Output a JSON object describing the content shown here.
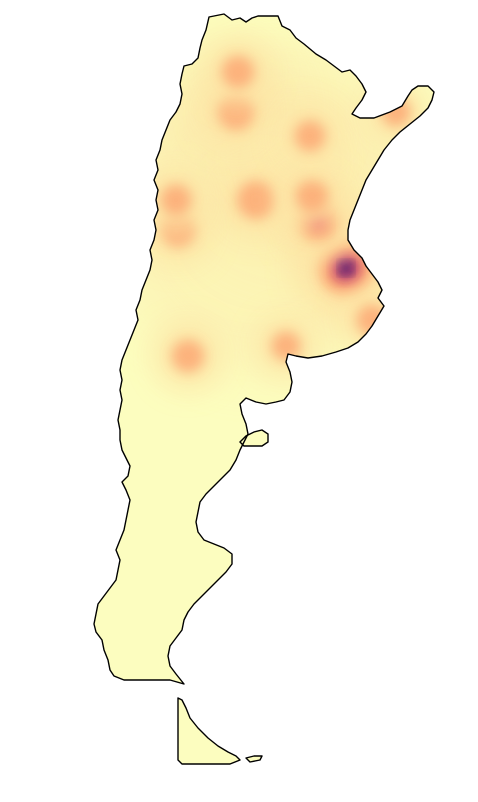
{
  "map": {
    "region": "Argentina",
    "style": "choropleth heatmap, no labels, no legend",
    "colors": {
      "background": "#ffffff",
      "outline": "#000000",
      "low": "#fcfdbf",
      "mid_low": "#fde4a5",
      "mid": "#fca572",
      "mid_high": "#e85362",
      "high": "#7b2382",
      "peak": "#1e1050"
    },
    "hotspots": [
      {
        "name": "buenos-aires",
        "intensity": 1.0
      },
      {
        "name": "rosario",
        "intensity": 0.55
      },
      {
        "name": "cordoba",
        "intensity": 0.5
      },
      {
        "name": "tucuman",
        "intensity": 0.45
      },
      {
        "name": "salta-jujuy",
        "intensity": 0.35
      },
      {
        "name": "mendoza",
        "intensity": 0.4
      },
      {
        "name": "santa-fe",
        "intensity": 0.35
      },
      {
        "name": "neuquen",
        "intensity": 0.35
      },
      {
        "name": "chaco-corrientes",
        "intensity": 0.3
      },
      {
        "name": "misiones",
        "intensity": 0.25
      },
      {
        "name": "san-juan",
        "intensity": 0.3
      },
      {
        "name": "mar-del-plata",
        "intensity": 0.3
      },
      {
        "name": "bahia-blanca",
        "intensity": 0.25
      }
    ]
  }
}
